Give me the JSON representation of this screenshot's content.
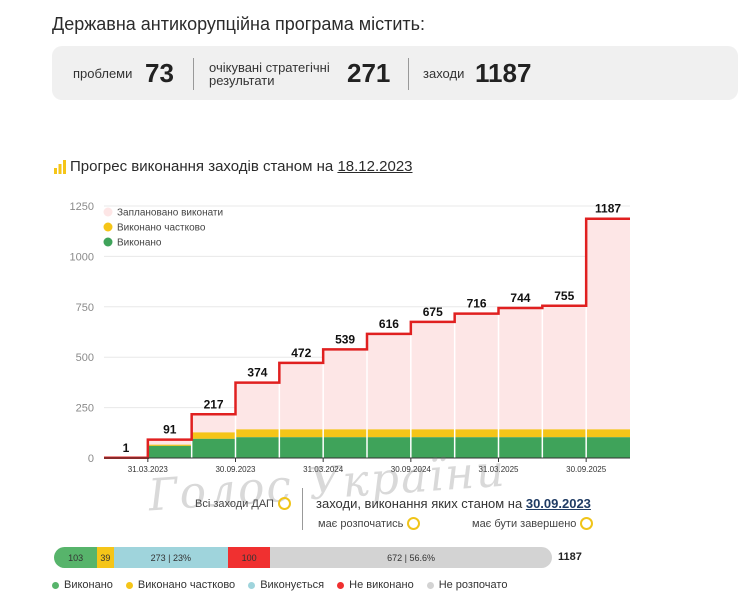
{
  "heading": "Державна антикорупційна програма містить:",
  "stats": {
    "problems_label": "проблеми",
    "problems_value": "73",
    "results_label_1": "очікувані стратегічні",
    "results_label_2": "результати",
    "results_value": "271",
    "measures_label": "заходи",
    "measures_value": "1187"
  },
  "chart_title": {
    "text": "Прогрес виконання заходів станом на",
    "date": "18.12.2023"
  },
  "chart_data": {
    "type": "area",
    "title": "Прогрес виконання заходів станом на 18.12.2023",
    "ylim": [
      0,
      1250
    ],
    "yticks": [
      "0",
      "250",
      "500",
      "750",
      "1000",
      "1250"
    ],
    "x_tick_labels": [
      "31.03.2023",
      "30.09.2023",
      "31.03.2024",
      "30.09.2024",
      "31.03.2025",
      "30.09.2025"
    ],
    "series": [
      {
        "name": "Заплановано виконати",
        "color": "#fde6e6",
        "line_color": "#e02020",
        "values": [
          1,
          91,
          217,
          374,
          472,
          539,
          616,
          675,
          716,
          744,
          755,
          1187
        ]
      },
      {
        "name": "Виконано частково",
        "color": "#f5c518",
        "values": [
          0,
          6,
          32,
          39,
          39,
          39,
          39,
          39,
          39,
          39,
          39,
          39
        ]
      },
      {
        "name": "Виконано",
        "color": "#3fa35a",
        "values": [
          0,
          60,
          95,
          103,
          103,
          103,
          103,
          103,
          103,
          103,
          103,
          103
        ]
      }
    ],
    "legend_position": "top-left",
    "grid": true
  },
  "controls": {
    "all_measures": "Всі заходи ДАП",
    "measures_status": "заходи, виконання яких станом на",
    "measures_date": "30.09.2023",
    "should_start": "має розпочатись",
    "should_end": "має бути завершено"
  },
  "progress": {
    "total": "1187",
    "segments": [
      {
        "value": 103,
        "label": "103",
        "color": "#57b46b"
      },
      {
        "value": 39,
        "label": "39",
        "color": "#f5c518"
      },
      {
        "value": 273,
        "label": "273",
        "pct": "| 23%",
        "color": "#9fd4dc"
      },
      {
        "value": 100,
        "label": "100",
        "color": "#f03030"
      },
      {
        "value": 672,
        "label": "672",
        "pct": "| 56.6%",
        "color": "#d3d3d3"
      }
    ]
  },
  "legend2": [
    {
      "label": "Виконано",
      "color": "#57b46b"
    },
    {
      "label": "Виконано частково",
      "color": "#f5c518"
    },
    {
      "label": "Виконується",
      "color": "#9fd4dc"
    },
    {
      "label": "Не виконано",
      "color": "#f03030"
    },
    {
      "label": "Не розпочато",
      "color": "#d3d3d3"
    }
  ],
  "watermark": "Голос України"
}
